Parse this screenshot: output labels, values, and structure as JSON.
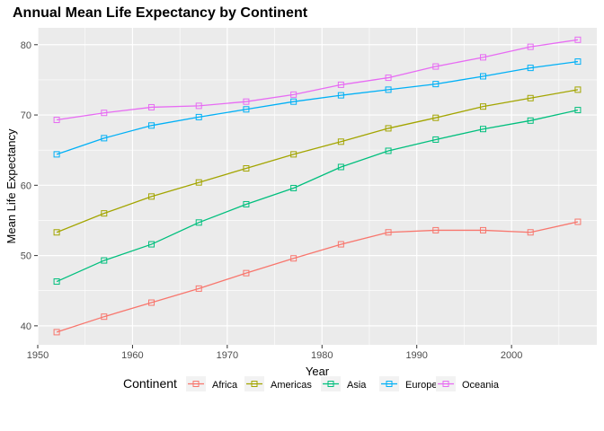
{
  "chart_data": {
    "type": "line",
    "title": "Annual Mean Life Expectancy by Continent",
    "xlabel": "Year",
    "ylabel": "Mean Life Expectancy",
    "xlim": [
      1950,
      2009
    ],
    "ylim": [
      37.3,
      82.4
    ],
    "x_ticks": [
      1950,
      1960,
      1970,
      1980,
      1990,
      2000
    ],
    "y_ticks": [
      40,
      50,
      60,
      70,
      80
    ],
    "grid": true,
    "legend": {
      "title": "Continent",
      "position": "bottom"
    },
    "markers": "open-square",
    "x": [
      1952,
      1957,
      1962,
      1967,
      1972,
      1977,
      1982,
      1987,
      1992,
      1997,
      2002,
      2007
    ],
    "series": [
      {
        "name": "Africa",
        "color": "#F8766D",
        "values": [
          39.1,
          41.3,
          43.3,
          45.3,
          47.5,
          49.6,
          51.6,
          53.3,
          53.6,
          53.6,
          53.3,
          54.8
        ]
      },
      {
        "name": "Americas",
        "color": "#A3A500",
        "values": [
          53.3,
          56.0,
          58.4,
          60.4,
          62.4,
          64.4,
          66.2,
          68.1,
          69.6,
          71.2,
          72.4,
          73.6
        ]
      },
      {
        "name": "Asia",
        "color": "#00BF7D",
        "values": [
          46.3,
          49.3,
          51.6,
          54.7,
          57.3,
          59.6,
          62.6,
          64.9,
          66.5,
          68.0,
          69.2,
          70.7
        ]
      },
      {
        "name": "Europe",
        "color": "#00B0F6",
        "values": [
          64.4,
          66.7,
          68.5,
          69.7,
          70.8,
          71.9,
          72.8,
          73.6,
          74.4,
          75.5,
          76.7,
          77.6
        ]
      },
      {
        "name": "Oceania",
        "color": "#E76BF3",
        "values": [
          69.3,
          70.3,
          71.1,
          71.3,
          71.9,
          72.9,
          74.3,
          75.3,
          76.9,
          78.2,
          79.7,
          80.7
        ]
      }
    ]
  }
}
